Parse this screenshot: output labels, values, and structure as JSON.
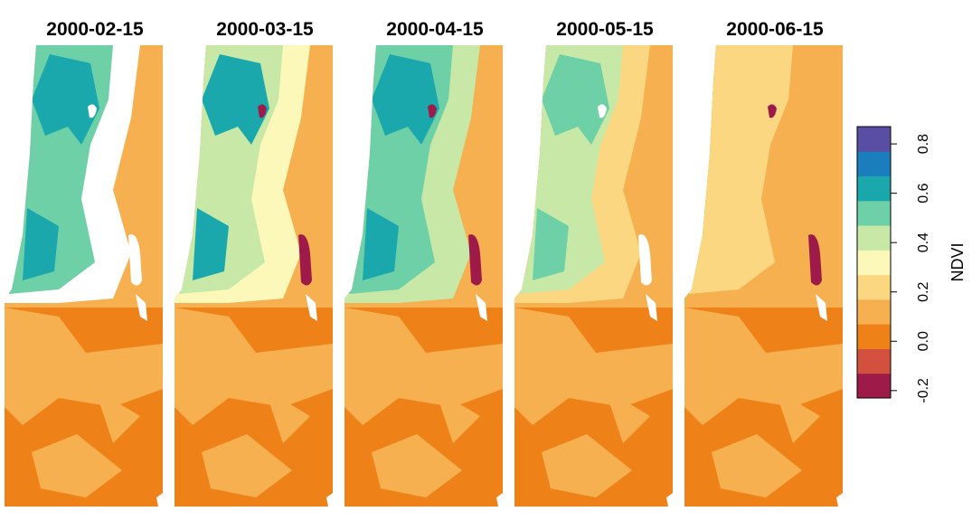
{
  "panels": [
    {
      "title": "2000-02-15"
    },
    {
      "title": "2000-03-15"
    },
    {
      "title": "2000-04-15"
    },
    {
      "title": "2000-05-15"
    },
    {
      "title": "2000-06-15"
    }
  ],
  "legend": {
    "title": "NDVI",
    "lim": [
      -0.23,
      0.87
    ],
    "ticks": [
      -0.2,
      {
        "value": 0,
        "label": "0.0"
      },
      0.2,
      0.4,
      0.6,
      0.8
    ],
    "colors": [
      "#9e1a48",
      "#d4503e",
      "#ee8219",
      "#f6b04f",
      "#fcd781",
      "#fcf8b9",
      "#c7e8a6",
      "#6ed0a6",
      "#1aa8ad",
      "#1a7dbc",
      "#5a4ea4"
    ]
  }
}
